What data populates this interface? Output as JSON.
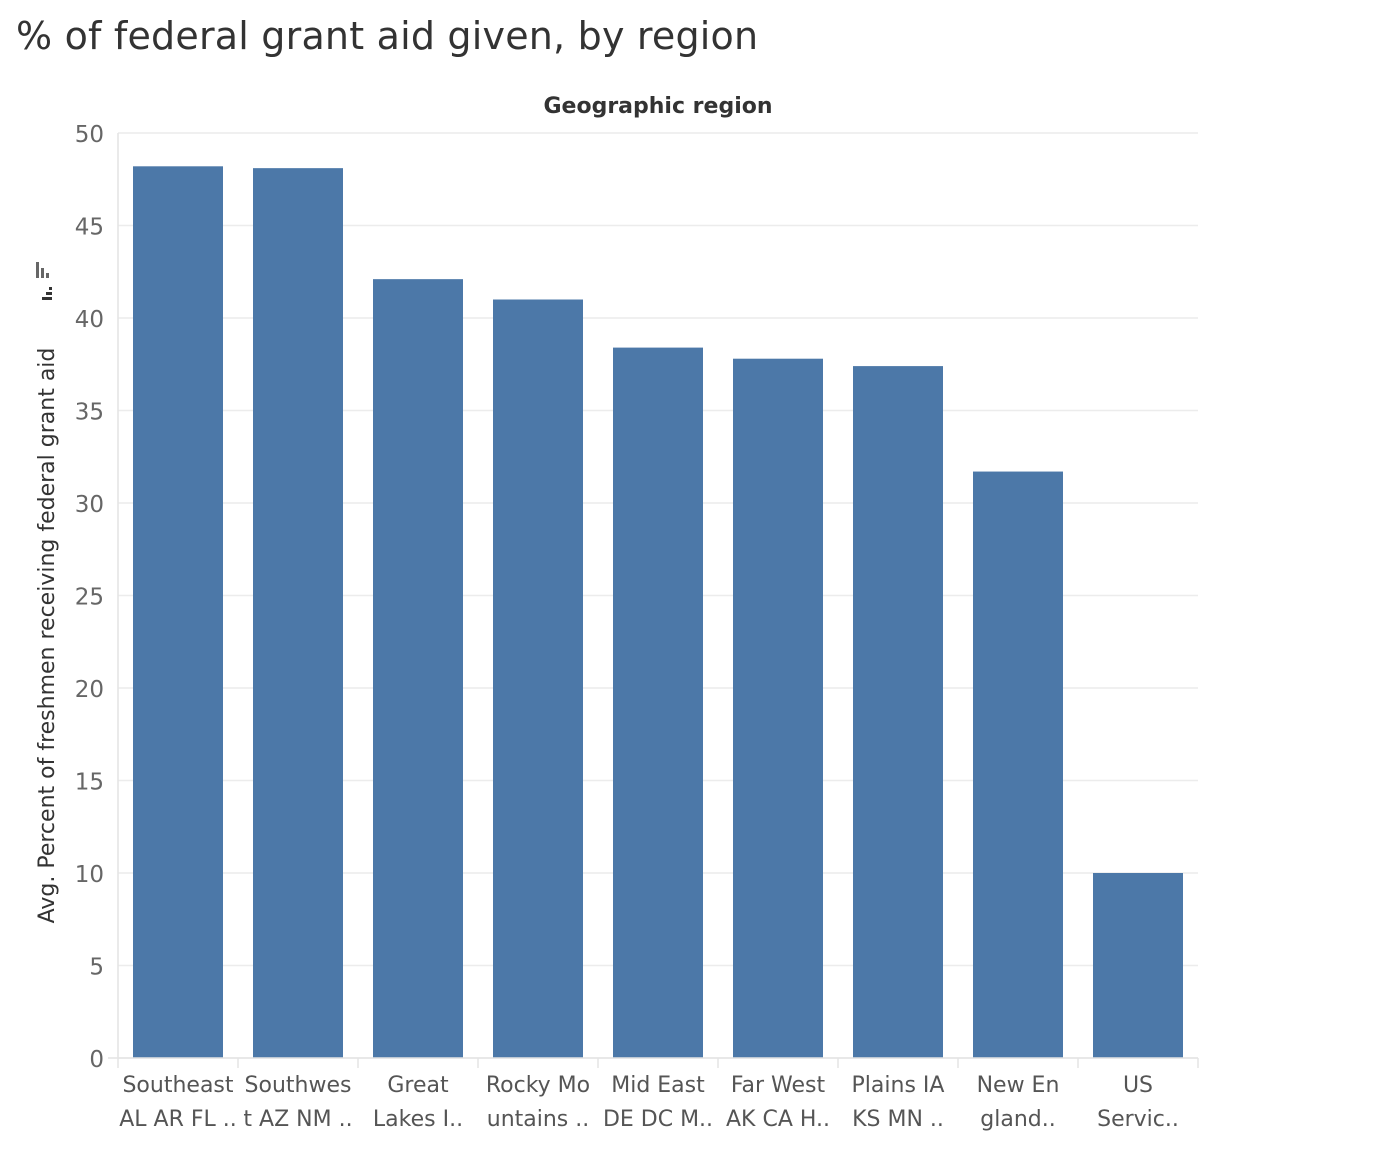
{
  "chart_data": {
    "type": "bar",
    "title": "% of federal grant aid given, by region",
    "column_header": "Geographic region",
    "ylabel": "Avg. Percent of freshmen receiving federal grant aid",
    "xlabel": "",
    "ylim": [
      0,
      50
    ],
    "y_ticks": [
      0,
      5,
      10,
      15,
      20,
      25,
      30,
      35,
      40,
      45,
      50
    ],
    "grid": true,
    "legend": "none",
    "color": "#4c78a8",
    "categories": [
      [
        "Southeast",
        "AL AR FL .."
      ],
      [
        "Southwes",
        "t AZ NM .."
      ],
      [
        "Great",
        "Lakes I.."
      ],
      [
        "Rocky Mo",
        "untains .."
      ],
      [
        "Mid East",
        "DE DC M.."
      ],
      [
        "Far West",
        "AK CA H.."
      ],
      [
        "Plains IA",
        "KS MN .."
      ],
      [
        "New En",
        "gland.."
      ],
      [
        "US",
        "Servic.."
      ]
    ],
    "values": [
      48.2,
      48.1,
      42.1,
      41.0,
      38.4,
      37.8,
      37.4,
      31.7,
      10.0
    ]
  }
}
